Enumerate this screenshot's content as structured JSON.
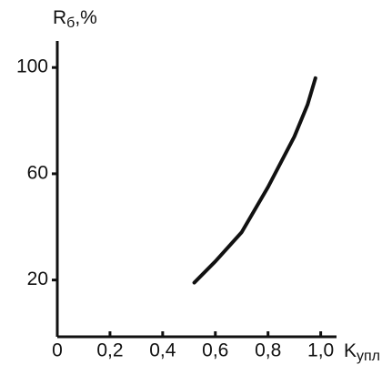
{
  "chart_data": {
    "type": "line",
    "y_label": {
      "text": "R",
      "subscript": "б",
      "suffix": ",%"
    },
    "x_label": {
      "text": "K",
      "subscript": "упл"
    },
    "x": [
      0.52,
      0.6,
      0.7,
      0.8,
      0.9,
      0.95,
      0.98
    ],
    "series": [
      {
        "color": "#111111",
        "values": [
          19,
          27,
          38,
          55,
          74,
          86,
          96
        ]
      }
    ],
    "xlim": [
      0,
      1.06
    ],
    "ylim": [
      0,
      110
    ],
    "xticks": [
      0,
      {
        "value": 0.2,
        "label": "0,2"
      },
      {
        "value": 0.4,
        "label": "0,4"
      },
      {
        "value": 0.6,
        "label": "0,6"
      },
      {
        "value": 0.8,
        "label": "0,8"
      },
      {
        "value": 1.0,
        "label": "1,0"
      }
    ],
    "yticks": [
      20,
      60,
      100
    ]
  }
}
